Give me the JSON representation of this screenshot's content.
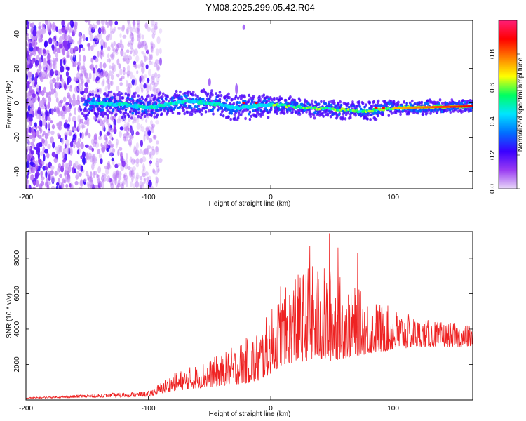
{
  "title": "YM08.2025.299.05.42.R04",
  "chart_data": [
    {
      "type": "heatmap",
      "xlabel": "Height of straight line (km)",
      "ylabel": "Frequency (Hz)",
      "xlim": [
        -200,
        165
      ],
      "ylim": [
        -50,
        48
      ],
      "xticks": [
        -200,
        -100,
        0,
        100
      ],
      "yticks": [
        -40,
        -20,
        0,
        20,
        40
      ],
      "colorbar": {
        "label": "Normalized spectral amplitude",
        "ticks": [
          "0.0",
          "0.2",
          "0.4",
          "0.6",
          "0.8"
        ],
        "tick_values": [
          0.0,
          0.2,
          0.4,
          0.6,
          0.8
        ],
        "range": [
          0,
          1
        ],
        "colormap": [
          "#e8d8f8",
          "#9a3cf2",
          "#3a00ff",
          "#0070ff",
          "#00e5ff",
          "#00ff60",
          "#ffff00",
          "#ff8000",
          "#ff0000",
          "#ff1e78"
        ]
      },
      "features": {
        "noise_region_x": [
          -200,
          -90
        ],
        "signal_start_x": -155,
        "signal_end_x": 165,
        "signal_center_hz": [
          {
            "x": -155,
            "f": 0
          },
          {
            "x": -120,
            "f": -1
          },
          {
            "x": -100,
            "f": -3
          },
          {
            "x": -70,
            "f": 1
          },
          {
            "x": -50,
            "f": 0
          },
          {
            "x": -30,
            "f": -3
          },
          {
            "x": 0,
            "f": -1
          },
          {
            "x": 30,
            "f": -3
          },
          {
            "x": 60,
            "f": -4
          },
          {
            "x": 75,
            "f": -5
          },
          {
            "x": 100,
            "f": -3
          },
          {
            "x": 165,
            "f": -2
          }
        ],
        "dominant_dots": [
          {
            "x": -22,
            "f": 0
          },
          {
            "x": -12,
            "f": 0
          },
          {
            "x": 86,
            "f": -3
          },
          {
            "x": 92,
            "f": -3
          }
        ]
      }
    },
    {
      "type": "line",
      "xlabel": "Height of straight line (km)",
      "ylabel": "SNR (10 * v/v)",
      "xlim": [
        -200,
        165
      ],
      "ylim": [
        0,
        9500
      ],
      "xticks": [
        -200,
        -100,
        0,
        100
      ],
      "yticks": [
        2000,
        4000,
        6000,
        8000
      ],
      "color": "#ee2222",
      "envelope": [
        {
          "x": -200,
          "base": 80,
          "amp": 60
        },
        {
          "x": -100,
          "base": 200,
          "amp": 300
        },
        {
          "x": -80,
          "base": 500,
          "amp": 1000
        },
        {
          "x": -40,
          "base": 800,
          "amp": 1800
        },
        {
          "x": -10,
          "base": 1000,
          "amp": 3000
        },
        {
          "x": 10,
          "base": 2000,
          "amp": 4200
        },
        {
          "x": 30,
          "base": 2200,
          "amp": 5500
        },
        {
          "x": 50,
          "base": 2200,
          "amp": 5300
        },
        {
          "x": 80,
          "base": 2600,
          "amp": 3200
        },
        {
          "x": 120,
          "base": 3000,
          "amp": 1600
        },
        {
          "x": 165,
          "base": 3000,
          "amp": 1200
        }
      ],
      "peaks": [
        {
          "x": 32,
          "y": 8700
        },
        {
          "x": 48,
          "y": 9400
        },
        {
          "x": 55,
          "y": 8600
        },
        {
          "x": 71,
          "y": 8300
        },
        {
          "x": 8,
          "y": 6400
        },
        {
          "x": 20,
          "y": 6800
        }
      ]
    }
  ]
}
